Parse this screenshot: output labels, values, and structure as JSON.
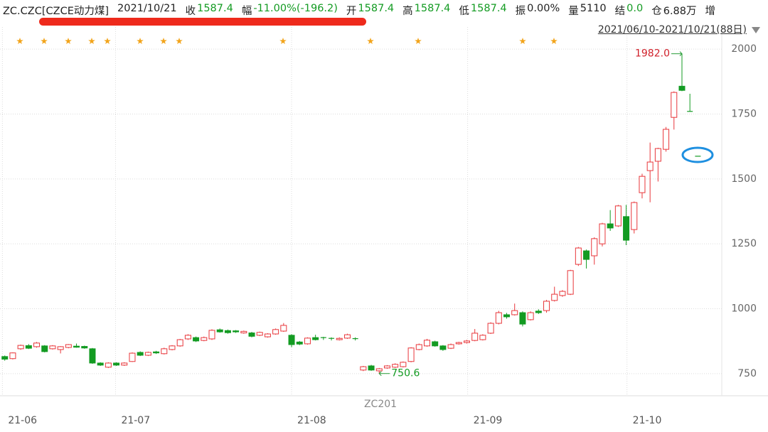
{
  "header": {
    "symbol": "ZC.CZC[CZCE动力煤]",
    "date": "2021/10/21",
    "fields": [
      {
        "label": "收",
        "value": "1587.4",
        "color": "#139b22"
      },
      {
        "label": "幅",
        "value": "-11.00%(-196.2)",
        "color": "#139b22"
      },
      {
        "label": "开",
        "value": "1587.4",
        "color": "#139b22"
      },
      {
        "label": "高",
        "value": "1587.4",
        "color": "#139b22"
      },
      {
        "label": "低",
        "value": "1587.4",
        "color": "#139b22"
      },
      {
        "label": "振",
        "value": "0.00%",
        "color": "#222222"
      },
      {
        "label": "量",
        "value": "5110",
        "color": "#222222"
      },
      {
        "label": "结",
        "value": "0.0",
        "color": "#139b22"
      },
      {
        "label": "仓",
        "value": "6.88万",
        "color": "#222222"
      },
      {
        "label": "增"
      }
    ],
    "range_label": "2021/06/10-2021/10/21(88日)"
  },
  "chart_data": {
    "type": "candlestick",
    "contract_label": "ZC201",
    "up_color": "#e8363a",
    "down_color": "#139b22",
    "grid": true,
    "ylim": [
      665,
      2085
    ],
    "yticks": [
      750,
      1000,
      1250,
      1500,
      1750,
      2000
    ],
    "xlim": [
      -0.6,
      90
    ],
    "xticks": [
      {
        "value": -0.3,
        "label": "21-06"
      },
      {
        "value": 13.9,
        "label": "21-07"
      },
      {
        "value": 36,
        "label": "21-08"
      },
      {
        "value": 58.1,
        "label": "21-09"
      },
      {
        "value": 78.1,
        "label": "21-10"
      }
    ],
    "high_label": {
      "value": 1982,
      "label": "1982.0"
    },
    "low_label": {
      "value": 750.6,
      "label": "750.6"
    },
    "ohlc": [
      [
        816,
        820,
        800,
        806
      ],
      [
        808,
        832,
        805,
        830
      ],
      [
        846,
        862,
        842,
        859
      ],
      [
        858,
        864,
        845,
        848
      ],
      [
        854,
        872,
        850,
        868
      ],
      [
        857,
        860,
        832,
        835
      ],
      [
        846,
        860,
        843,
        857
      ],
      [
        843,
        856,
        828,
        854
      ],
      [
        851,
        864,
        848,
        862
      ],
      [
        856,
        866,
        850,
        852
      ],
      [
        855,
        858,
        846,
        849
      ],
      [
        846,
        849,
        788,
        791
      ],
      [
        791,
        794,
        780,
        783
      ],
      [
        775,
        794,
        772,
        791
      ],
      [
        791,
        794,
        780,
        783
      ],
      [
        783,
        794,
        780,
        791
      ],
      [
        797,
        832,
        795,
        829
      ],
      [
        832,
        836,
        818,
        821
      ],
      [
        821,
        835,
        818,
        832
      ],
      [
        834,
        838,
        826,
        830
      ],
      [
        827,
        850,
        824,
        846
      ],
      [
        843,
        860,
        840,
        857
      ],
      [
        857,
        884,
        854,
        881
      ],
      [
        884,
        902,
        880,
        898
      ],
      [
        889,
        893,
        872,
        876
      ],
      [
        878,
        893,
        875,
        889
      ],
      [
        884,
        921,
        880,
        917
      ],
      [
        919,
        924,
        908,
        911
      ],
      [
        916,
        920,
        904,
        908
      ],
      [
        915,
        918,
        907,
        911
      ],
      [
        907,
        916,
        904,
        913
      ],
      [
        907,
        911,
        890,
        894
      ],
      [
        898,
        912,
        895,
        909
      ],
      [
        892,
        906,
        889,
        903
      ],
      [
        903,
        924,
        900,
        920
      ],
      [
        914,
        945,
        911,
        936
      ],
      [
        898,
        902,
        852,
        862
      ],
      [
        872,
        876,
        860,
        864
      ],
      [
        865,
        890,
        862,
        887
      ],
      [
        889,
        900,
        878,
        881
      ],
      [
        889,
        892,
        880,
        887
      ],
      [
        886,
        890,
        878,
        884
      ],
      [
        881,
        890,
        878,
        886
      ],
      [
        887,
        904,
        884,
        900
      ],
      [
        885,
        890,
        878,
        884
      ],
      [
        764,
        780,
        760,
        777
      ],
      [
        780,
        784,
        761,
        764
      ],
      [
        761,
        772,
        750.6,
        769
      ],
      [
        772,
        783,
        769,
        780
      ],
      [
        775,
        790,
        772,
        786
      ],
      [
        777,
        797,
        774,
        794
      ],
      [
        797,
        852,
        794,
        849
      ],
      [
        843,
        866,
        840,
        862
      ],
      [
        857,
        884,
        854,
        879
      ],
      [
        873,
        877,
        854,
        857
      ],
      [
        857,
        860,
        838,
        843
      ],
      [
        848,
        866,
        845,
        862
      ],
      [
        865,
        873,
        862,
        870
      ],
      [
        870,
        880,
        866,
        876
      ],
      [
        878,
        922,
        875,
        906
      ],
      [
        881,
        902,
        878,
        898
      ],
      [
        906,
        948,
        903,
        944
      ],
      [
        944,
        992,
        940,
        985
      ],
      [
        977,
        984,
        962,
        969
      ],
      [
        977,
        1020,
        974,
        993
      ],
      [
        985,
        990,
        932,
        941
      ],
      [
        958,
        990,
        955,
        985
      ],
      [
        991,
        998,
        980,
        985
      ],
      [
        993,
        1034,
        985,
        1029
      ],
      [
        1032,
        1085,
        1028,
        1056
      ],
      [
        1051,
        1072,
        1046,
        1067
      ],
      [
        1056,
        1150,
        1053,
        1147
      ],
      [
        1171,
        1238,
        1165,
        1234
      ],
      [
        1223,
        1228,
        1155,
        1190
      ],
      [
        1204,
        1275,
        1170,
        1270
      ],
      [
        1250,
        1331,
        1240,
        1327
      ],
      [
        1327,
        1380,
        1300,
        1311
      ],
      [
        1319,
        1400,
        1315,
        1396
      ],
      [
        1355,
        1400,
        1245,
        1264
      ],
      [
        1305,
        1413,
        1290,
        1409
      ],
      [
        1447,
        1520,
        1425,
        1510
      ],
      [
        1532,
        1640,
        1410,
        1565
      ],
      [
        1568,
        1620,
        1490,
        1617
      ],
      [
        1614,
        1700,
        1605,
        1691
      ],
      [
        1737,
        1837,
        1690,
        1833
      ],
      [
        1857,
        1982,
        1838,
        1841
      ],
      [
        1760,
        1828,
        1760,
        1760
      ],
      [
        1587.4,
        1587.4,
        1587.4,
        1587.4
      ]
    ]
  }
}
